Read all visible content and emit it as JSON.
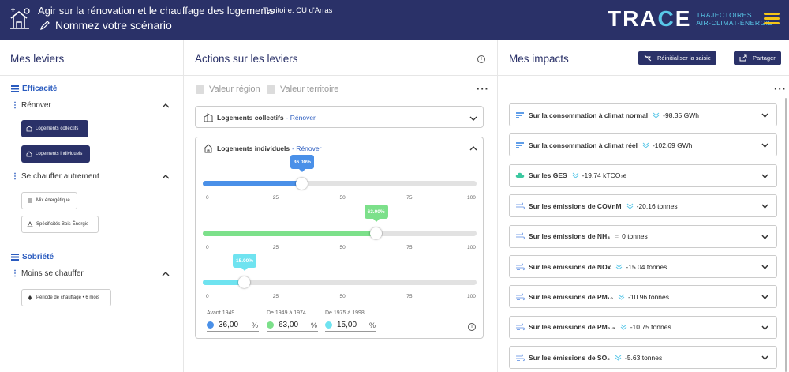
{
  "header": {
    "title": "Agir sur la rénovation et le chauffage des logements",
    "territory": "Territoire: CU d'Arras",
    "scenario_name": "Nommez votre scénario",
    "logo_word": "TRACE",
    "logo_sub_line1": "TRAJECTOIRES",
    "logo_sub_line2": "AIR-CLIMAT-ÉNERGIE",
    "colors": {
      "navy": "#2a3168",
      "accent": "#59c7e8",
      "menu": "#f5c518"
    }
  },
  "levers": {
    "title": "Mes leviers",
    "groups": [
      {
        "label": "Efficacité",
        "subs": [
          {
            "label": "Rénover",
            "chips": [
              "Logements collectifs",
              "Logements individuels"
            ]
          },
          {
            "label": "Se chauffer autrement",
            "chips": [
              "Mix énergétique",
              "Spécificités Bois-Énergie"
            ]
          }
        ]
      },
      {
        "label": "Sobriété",
        "subs": [
          {
            "label": "Moins se chauffer",
            "chips": [
              "Période de chauffage • 6 mois"
            ]
          }
        ]
      }
    ]
  },
  "actions": {
    "title": "Actions sur les leviers",
    "check_region": "Valeur région",
    "check_territory": "Valeur territoire",
    "panel_collectifs": {
      "title": "Logements collectifs",
      "tag": "- Rénover"
    },
    "panel_individuels": {
      "title": "Logements individuels",
      "tag": "- Rénover"
    },
    "sliders": [
      {
        "label": "Avant 1949",
        "value": 36.0,
        "tip": "36.00%",
        "input": "36,00",
        "color": "#4a90e8"
      },
      {
        "label": "De 1949 à 1974",
        "value": 63.0,
        "tip": "63.00%",
        "input": "63,00",
        "color": "#7ce08a"
      },
      {
        "label": "De 1975 à 1998",
        "value": 15.0,
        "tip": "15.00%",
        "input": "15,00",
        "color": "#6fe3f0"
      }
    ],
    "ticks": [
      "0",
      "25",
      "50",
      "75",
      "100"
    ],
    "unit": "%"
  },
  "impacts": {
    "title": "Mes impacts",
    "reset_label": "Réinitialiser la saisie",
    "share_label": "Partager",
    "items": [
      {
        "label": "Sur la consommation à climat normal",
        "value": "-98.35 GWh",
        "trend": "down"
      },
      {
        "label": "Sur la consommation à climat réel",
        "value": "-102.69 GWh",
        "trend": "down"
      },
      {
        "label": "Sur les GES",
        "value": "-19.74 kTCO₂e",
        "trend": "down"
      },
      {
        "label": "Sur les émissions de COVnM",
        "value": "-20.16 tonnes",
        "trend": "down"
      },
      {
        "label": "Sur les émissions de NH₃",
        "value": "0 tonnes",
        "trend": "equal"
      },
      {
        "label": "Sur les émissions de NOx",
        "value": "-15.04 tonnes",
        "trend": "down"
      },
      {
        "label": "Sur les émissions de PM₁₀",
        "value": "-10.96 tonnes",
        "trend": "down"
      },
      {
        "label": "Sur les émissions de PM₂.₅",
        "value": "-10.75 tonnes",
        "trend": "down"
      },
      {
        "label": "Sur les émissions de SO₂",
        "value": "-5.63 tonnes",
        "trend": "down"
      }
    ]
  }
}
